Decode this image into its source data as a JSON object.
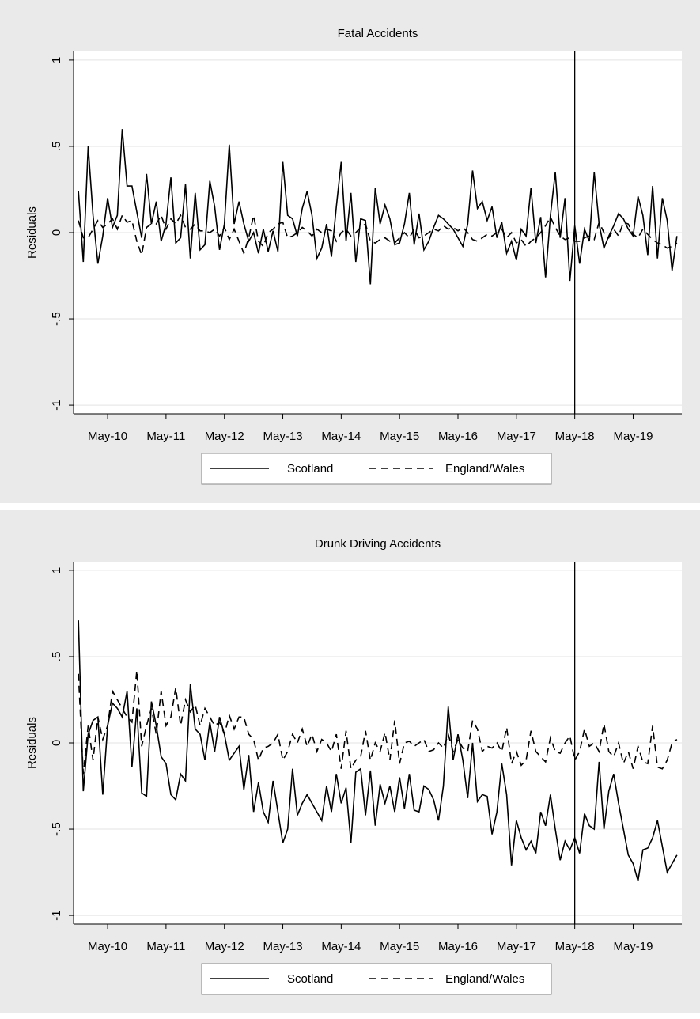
{
  "chart_data": [
    {
      "type": "line",
      "title": "Fatal Accidents",
      "ylabel": "Residuals",
      "x": [
        "2009-11",
        "2009-12",
        "2010-01",
        "2010-02",
        "2010-03",
        "2010-04",
        "2010-05",
        "2010-06",
        "2010-07",
        "2010-08",
        "2010-09",
        "2010-10",
        "2010-11",
        "2010-12",
        "2011-01",
        "2011-02",
        "2011-03",
        "2011-04",
        "2011-05",
        "2011-06",
        "2011-07",
        "2011-08",
        "2011-09",
        "2011-10",
        "2011-11",
        "2011-12",
        "2012-01",
        "2012-02",
        "2012-03",
        "2012-04",
        "2012-05",
        "2012-06",
        "2012-07",
        "2012-08",
        "2012-09",
        "2012-10",
        "2012-11",
        "2012-12",
        "2013-01",
        "2013-02",
        "2013-03",
        "2013-04",
        "2013-05",
        "2013-06",
        "2013-07",
        "2013-08",
        "2013-09",
        "2013-10",
        "2013-11",
        "2013-12",
        "2014-01",
        "2014-02",
        "2014-03",
        "2014-04",
        "2014-05",
        "2014-06",
        "2014-07",
        "2014-08",
        "2014-09",
        "2014-10",
        "2014-11",
        "2014-12",
        "2015-01",
        "2015-02",
        "2015-03",
        "2015-04",
        "2015-05",
        "2015-06",
        "2015-07",
        "2015-08",
        "2015-09",
        "2015-10",
        "2015-11",
        "2015-12",
        "2016-01",
        "2016-02",
        "2016-03",
        "2016-04",
        "2016-05",
        "2016-06",
        "2016-07",
        "2016-08",
        "2016-09",
        "2016-10",
        "2016-11",
        "2016-12",
        "2017-01",
        "2017-02",
        "2017-03",
        "2017-04",
        "2017-05",
        "2017-06",
        "2017-07",
        "2017-08",
        "2017-09",
        "2017-10",
        "2017-11",
        "2017-12",
        "2018-01",
        "2018-02",
        "2018-03",
        "2018-04",
        "2018-05",
        "2018-06",
        "2018-07",
        "2018-08",
        "2018-09",
        "2018-10",
        "2018-11",
        "2018-12",
        "2019-01",
        "2019-02",
        "2019-03",
        "2019-04",
        "2019-05",
        "2019-06",
        "2019-07",
        "2019-08",
        "2019-09",
        "2019-10",
        "2019-11",
        "2019-12",
        "2020-01",
        "2020-02"
      ],
      "series": [
        {
          "name": "Scotland",
          "color": "#000000",
          "dash": "solid",
          "values": [
            0.24,
            -0.17,
            0.5,
            0.1,
            -0.18,
            -0.02,
            0.2,
            0.03,
            0.1,
            0.6,
            0.27,
            0.27,
            0.12,
            -0.03,
            0.34,
            0.05,
            0.18,
            -0.05,
            0.05,
            0.32,
            -0.06,
            -0.03,
            0.28,
            -0.15,
            0.23,
            -0.1,
            -0.07,
            0.3,
            0.15,
            -0.1,
            0.05,
            0.51,
            0.05,
            0.18,
            0.05,
            -0.05,
            0,
            -0.12,
            0.02,
            -0.11,
            0.01,
            -0.11,
            0.41,
            0.1,
            0.08,
            -0.02,
            0.14,
            0.24,
            0.1,
            -0.15,
            -0.09,
            0.05,
            -0.14,
            0.15,
            0.41,
            -0.05,
            0.23,
            -0.17,
            0.08,
            0.07,
            -0.3,
            0.26,
            0.05,
            0.16,
            0.08,
            -0.07,
            -0.06,
            0.05,
            0.23,
            -0.07,
            0.11,
            -0.1,
            -0.05,
            0.03,
            0.1,
            0.08,
            0.05,
            0.02,
            -0.03,
            -0.08,
            0.05,
            0.36,
            0.14,
            0.18,
            0.07,
            0.15,
            -0.03,
            0.06,
            -0.12,
            -0.05,
            -0.16,
            0.02,
            -0.02,
            0.26,
            -0.06,
            0.09,
            -0.26,
            0.1,
            0.35,
            -0.03,
            0.2,
            -0.28,
            0.04,
            -0.18,
            0.02,
            -0.05,
            0.35,
            0.05,
            -0.09,
            -0.02,
            0.04,
            0.11,
            0.08,
            0.02,
            -0.02,
            0.21,
            0.1,
            -0.13,
            0.27,
            -0.15,
            0.2,
            0.07,
            -0.22,
            -0.02
          ]
        },
        {
          "name": "England/Wales",
          "color": "#000000",
          "dash": "dashed",
          "values": [
            0.07,
            -0.03,
            -0.03,
            0.02,
            0.07,
            0.03,
            0.05,
            0.08,
            0.02,
            0.1,
            0.06,
            0.07,
            -0.05,
            -0.13,
            0.03,
            0.05,
            0.05,
            0.1,
            0.02,
            0.08,
            0.05,
            0.1,
            0.03,
            0.02,
            0.05,
            0.01,
            0.01,
            0.0,
            0.02,
            -0.02,
            0.03,
            -0.04,
            0.02,
            -0.05,
            -0.12,
            -0.03,
            0.1,
            -0.05,
            -0.08,
            0.0,
            0.02,
            0.05,
            0.06,
            -0.03,
            -0.02,
            0.0,
            0.03,
            0.01,
            -0.02,
            0.02,
            0.0,
            0.02,
            0.01,
            -0.05,
            0.0,
            0.02,
            -0.02,
            0.0,
            0.03,
            0.05,
            -0.05,
            -0.06,
            -0.04,
            -0.03,
            -0.05,
            -0.06,
            -0.03,
            0.0,
            -0.03,
            0.02,
            -0.03,
            -0.02,
            0.0,
            0.02,
            0.01,
            0.04,
            0.02,
            0.03,
            0.01,
            0.03,
            0.0,
            -0.04,
            -0.05,
            -0.03,
            -0.01,
            -0.02,
            0.0,
            0.02,
            -0.03,
            0.0,
            -0.06,
            -0.04,
            -0.08,
            -0.05,
            -0.03,
            0.0,
            0.04,
            0.09,
            0.03,
            -0.02,
            -0.04,
            -0.03,
            -0.05,
            -0.05,
            -0.03,
            -0.02,
            -0.04,
            0.06,
            0.0,
            -0.03,
            0.02,
            -0.02,
            0.06,
            0.05,
            -0.01,
            -0.03,
            0.02,
            -0.01,
            -0.04,
            -0.06,
            -0.07,
            -0.09,
            -0.08,
            -0.06
          ]
        }
      ],
      "xlim": [
        "2009-10",
        "2020-03"
      ],
      "xticks": [
        {
          "value": "2010-05",
          "label": "May-10"
        },
        {
          "value": "2011-05",
          "label": "May-11"
        },
        {
          "value": "2012-05",
          "label": "May-12"
        },
        {
          "value": "2013-05",
          "label": "May-13"
        },
        {
          "value": "2014-05",
          "label": "May-14"
        },
        {
          "value": "2015-05",
          "label": "May-15"
        },
        {
          "value": "2016-05",
          "label": "May-16"
        },
        {
          "value": "2017-05",
          "label": "May-17"
        },
        {
          "value": "2018-05",
          "label": "May-18"
        },
        {
          "value": "2019-05",
          "label": "May-19"
        }
      ],
      "ylim": [
        -1.05,
        1.05
      ],
      "yticks": [
        -1,
        {
          "value": -0.5,
          "label": "-.5"
        },
        0,
        {
          "value": 0.5,
          "label": ".5"
        },
        1
      ],
      "vline": "2018-05",
      "grid": true,
      "legend": "bottom"
    },
    {
      "type": "line",
      "title": "Drunk Driving Accidents",
      "ylabel": "Residuals",
      "x": [
        "2009-11",
        "2009-12",
        "2010-01",
        "2010-02",
        "2010-03",
        "2010-04",
        "2010-05",
        "2010-06",
        "2010-07",
        "2010-08",
        "2010-09",
        "2010-10",
        "2010-11",
        "2010-12",
        "2011-01",
        "2011-02",
        "2011-03",
        "2011-04",
        "2011-05",
        "2011-06",
        "2011-07",
        "2011-08",
        "2011-09",
        "2011-10",
        "2011-11",
        "2011-12",
        "2012-01",
        "2012-02",
        "2012-03",
        "2012-04",
        "2012-05",
        "2012-06",
        "2012-07",
        "2012-08",
        "2012-09",
        "2012-10",
        "2012-11",
        "2012-12",
        "2013-01",
        "2013-02",
        "2013-03",
        "2013-04",
        "2013-05",
        "2013-06",
        "2013-07",
        "2013-08",
        "2013-09",
        "2013-10",
        "2013-11",
        "2013-12",
        "2014-01",
        "2014-02",
        "2014-03",
        "2014-04",
        "2014-05",
        "2014-06",
        "2014-07",
        "2014-08",
        "2014-09",
        "2014-10",
        "2014-11",
        "2014-12",
        "2015-01",
        "2015-02",
        "2015-03",
        "2015-04",
        "2015-05",
        "2015-06",
        "2015-07",
        "2015-08",
        "2015-09",
        "2015-10",
        "2015-11",
        "2015-12",
        "2016-01",
        "2016-02",
        "2016-03",
        "2016-04",
        "2016-05",
        "2016-06",
        "2016-07",
        "2016-08",
        "2016-09",
        "2016-10",
        "2016-11",
        "2016-12",
        "2017-01",
        "2017-02",
        "2017-03",
        "2017-04",
        "2017-05",
        "2017-06",
        "2017-07",
        "2017-08",
        "2017-09",
        "2017-10",
        "2017-11",
        "2017-12",
        "2018-01",
        "2018-02",
        "2018-03",
        "2018-04",
        "2018-05",
        "2018-06",
        "2018-07",
        "2018-08",
        "2018-09",
        "2018-10",
        "2018-11",
        "2018-12",
        "2019-01",
        "2019-02",
        "2019-03",
        "2019-04",
        "2019-05",
        "2019-06",
        "2019-07",
        "2019-08",
        "2019-09",
        "2019-10",
        "2019-11",
        "2019-12",
        "2020-01",
        "2020-02"
      ],
      "series": [
        {
          "name": "Scotland",
          "color": "#000000",
          "dash": "solid",
          "values": [
            0.71,
            -0.28,
            0.05,
            0.13,
            0.15,
            -0.3,
            0.1,
            0.23,
            0.2,
            0.15,
            0.3,
            -0.14,
            0.2,
            -0.29,
            -0.31,
            0.24,
            0.1,
            -0.08,
            -0.12,
            -0.3,
            -0.33,
            -0.18,
            -0.22,
            0.34,
            0.08,
            0.05,
            -0.1,
            0.12,
            -0.05,
            0.15,
            0.05,
            -0.1,
            -0.06,
            -0.02,
            -0.27,
            -0.07,
            -0.4,
            -0.23,
            -0.4,
            -0.46,
            -0.22,
            -0.4,
            -0.58,
            -0.5,
            -0.15,
            -0.42,
            -0.35,
            -0.3,
            -0.35,
            -0.4,
            -0.45,
            -0.25,
            -0.4,
            -0.18,
            -0.35,
            -0.26,
            -0.58,
            -0.17,
            -0.15,
            -0.42,
            -0.16,
            -0.48,
            -0.24,
            -0.35,
            -0.25,
            -0.4,
            -0.2,
            -0.38,
            -0.18,
            -0.39,
            -0.4,
            -0.25,
            -0.27,
            -0.33,
            -0.45,
            -0.25,
            0.21,
            -0.1,
            0.05,
            -0.1,
            -0.32,
            0.0,
            -0.34,
            -0.3,
            -0.31,
            -0.53,
            -0.4,
            -0.12,
            -0.3,
            -0.71,
            -0.45,
            -0.55,
            -0.62,
            -0.57,
            -0.64,
            -0.4,
            -0.48,
            -0.3,
            -0.5,
            -0.68,
            -0.57,
            -0.62,
            -0.55,
            -0.64,
            -0.41,
            -0.48,
            -0.5,
            -0.11,
            -0.5,
            -0.28,
            -0.18,
            -0.35,
            -0.5,
            -0.65,
            -0.7,
            -0.8,
            -0.62,
            -0.61,
            -0.55,
            -0.45,
            -0.6,
            -0.75,
            -0.7,
            -0.65
          ]
        },
        {
          "name": "England/Wales",
          "color": "#000000",
          "dash": "dashed",
          "values": [
            0.4,
            -0.18,
            0.1,
            -0.1,
            0.15,
            0.02,
            0.1,
            0.3,
            0.25,
            0.2,
            0.15,
            0.12,
            0.42,
            -0.02,
            0.1,
            0.2,
            0.05,
            0.3,
            0.1,
            0.15,
            0.32,
            0.1,
            0.25,
            0.18,
            0.22,
            0.1,
            0.2,
            0.15,
            0.1,
            0.12,
            0.05,
            0.16,
            0.08,
            0.15,
            0.15,
            0.05,
            0.02,
            -0.1,
            -0.03,
            -0.02,
            0.0,
            0.05,
            -0.1,
            -0.05,
            0.05,
            0.0,
            0.08,
            -0.02,
            0.05,
            -0.05,
            0.02,
            0.0,
            -0.05,
            0.05,
            -0.15,
            0.07,
            -0.15,
            -0.1,
            -0.08,
            0.07,
            -0.1,
            0.0,
            -0.05,
            0.06,
            -0.1,
            0.13,
            -0.12,
            0.0,
            0.01,
            -0.02,
            0.0,
            0.02,
            -0.05,
            -0.04,
            0.0,
            -0.03,
            0.05,
            -0.05,
            0.02,
            -0.03,
            -0.05,
            0.13,
            0.08,
            -0.05,
            -0.02,
            -0.03,
            0.0,
            -0.05,
            0.09,
            -0.12,
            -0.05,
            -0.13,
            -0.1,
            0.07,
            -0.05,
            -0.08,
            -0.11,
            0.03,
            -0.05,
            -0.06,
            0.0,
            0.04,
            -0.1,
            -0.05,
            0.08,
            -0.02,
            0.0,
            -0.05,
            0.11,
            -0.05,
            -0.08,
            0.0,
            -0.12,
            -0.05,
            -0.15,
            -0.02,
            -0.11,
            -0.12,
            0.1,
            -0.14,
            -0.15,
            -0.1,
            0.0,
            0.02
          ]
        }
      ],
      "xlim": [
        "2009-10",
        "2020-03"
      ],
      "xticks": [
        {
          "value": "2010-05",
          "label": "May-10"
        },
        {
          "value": "2011-05",
          "label": "May-11"
        },
        {
          "value": "2012-05",
          "label": "May-12"
        },
        {
          "value": "2013-05",
          "label": "May-13"
        },
        {
          "value": "2014-05",
          "label": "May-14"
        },
        {
          "value": "2015-05",
          "label": "May-15"
        },
        {
          "value": "2016-05",
          "label": "May-16"
        },
        {
          "value": "2017-05",
          "label": "May-17"
        },
        {
          "value": "2018-05",
          "label": "May-18"
        },
        {
          "value": "2019-05",
          "label": "May-19"
        }
      ],
      "ylim": [
        -1.05,
        1.05
      ],
      "yticks": [
        -1,
        {
          "value": -0.5,
          "label": "-.5"
        },
        0,
        {
          "value": 0.5,
          "label": ".5"
        },
        1
      ],
      "vline": "2018-05",
      "grid": true,
      "legend": "bottom"
    }
  ]
}
